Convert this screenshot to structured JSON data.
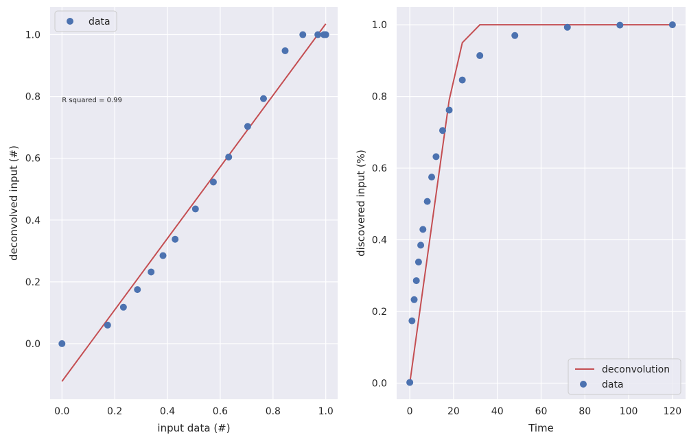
{
  "chart_data": [
    {
      "type": "scatter",
      "xlabel": "input data (#)",
      "ylabel": "deconvolved input (#)",
      "xlim": [
        -0.045,
        1.045
      ],
      "ylim": [
        -0.18,
        1.09
      ],
      "xticks": [
        0.0,
        0.2,
        0.4,
        0.6,
        0.8,
        1.0
      ],
      "yticks": [
        0.0,
        0.2,
        0.4,
        0.6,
        0.8,
        1.0
      ],
      "xtick_labels": [
        "0.0",
        "0.2",
        "0.4",
        "0.6",
        "0.8",
        "1.0"
      ],
      "ytick_labels": [
        "0.0",
        "0.2",
        "0.4",
        "0.6",
        "0.8",
        "1.0"
      ],
      "grid": true,
      "legend": {
        "position": "upper-left",
        "entries": [
          "data"
        ]
      },
      "annotation": {
        "text": "R squared = 0.99",
        "x": 0.0,
        "y": 0.79
      },
      "series": [
        {
          "name": "data",
          "kind": "scatter",
          "color": "#4c72b0",
          "x": [
            0.0,
            0.173,
            0.233,
            0.286,
            0.338,
            0.383,
            0.429,
            0.506,
            0.574,
            0.632,
            0.704,
            0.764,
            0.846,
            0.913,
            0.97,
            0.993,
            1.0
          ],
          "y": [
            0.0,
            0.06,
            0.118,
            0.175,
            0.232,
            0.285,
            0.338,
            0.436,
            0.523,
            0.604,
            0.703,
            0.793,
            0.948,
            1.0,
            1.0,
            1.0,
            1.0
          ]
        },
        {
          "name": "fit",
          "kind": "line",
          "color": "#c44e52",
          "x": [
            0.0,
            1.0
          ],
          "y": [
            -0.122,
            1.035
          ]
        }
      ]
    },
    {
      "type": "line",
      "xlabel": "Time",
      "ylabel": "discovered input (%)",
      "xlim": [
        -6,
        126
      ],
      "ylim": [
        -0.045,
        1.05
      ],
      "xticks": [
        0,
        20,
        40,
        60,
        80,
        100,
        120
      ],
      "yticks": [
        0.0,
        0.2,
        0.4,
        0.6,
        0.8,
        1.0
      ],
      "xtick_labels": [
        "0",
        "20",
        "40",
        "60",
        "80",
        "100",
        "120"
      ],
      "ytick_labels": [
        "0.0",
        "0.2",
        "0.4",
        "0.6",
        "0.8",
        "1.0"
      ],
      "grid": true,
      "legend": {
        "position": "lower-right",
        "entries": [
          "deconvolution",
          "data"
        ]
      },
      "series": [
        {
          "name": "deconvolution",
          "kind": "line",
          "color": "#c44e52",
          "x": [
            0,
            18,
            24,
            32,
            120
          ],
          "y": [
            0.0,
            0.79,
            0.95,
            1.0,
            1.0
          ]
        },
        {
          "name": "data",
          "kind": "scatter",
          "color": "#4c72b0",
          "x": [
            0,
            1,
            2,
            3,
            4,
            5,
            6,
            8,
            10,
            12,
            15,
            18,
            24,
            32,
            48,
            72,
            96,
            120
          ],
          "y": [
            0.002,
            0.174,
            0.233,
            0.286,
            0.338,
            0.385,
            0.429,
            0.507,
            0.575,
            0.632,
            0.705,
            0.762,
            0.846,
            0.914,
            0.97,
            0.993,
            0.999,
            1.0
          ]
        }
      ]
    }
  ]
}
